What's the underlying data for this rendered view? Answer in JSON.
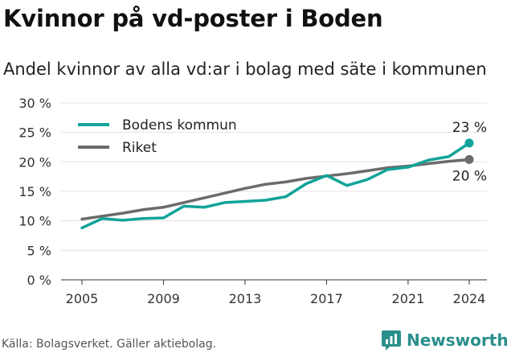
{
  "title": "Kvinnor på vd-poster i Boden",
  "subtitle": "Andel kvinnor av alla vd:ar i bolag med säte i kommunen",
  "source": "Källa: Bolagsverket. Gäller aktiebolag.",
  "brand": "Newsworthy",
  "colors": {
    "bodens": "#11a39a",
    "riket": "#6b6b6b",
    "brand": "#2a8f8b",
    "grid": "#e3e3e3"
  },
  "chart_data": {
    "type": "line",
    "x": [
      2005,
      2006,
      2007,
      2008,
      2009,
      2010,
      2011,
      2012,
      2013,
      2014,
      2015,
      2016,
      2017,
      2018,
      2019,
      2020,
      2021,
      2022,
      2023,
      2024
    ],
    "x_ticks": [
      "2005",
      "2009",
      "2013",
      "2017",
      "2021",
      "2024"
    ],
    "y_ticks": [
      "0 %",
      "5 %",
      "10 %",
      "15 %",
      "20 %",
      "25 %",
      "30 %"
    ],
    "ylim": [
      0,
      30
    ],
    "grid": true,
    "legend": "top-left",
    "series": [
      {
        "name": "Bodens kommun",
        "color": "#11a39a",
        "values": [
          8.8,
          10.4,
          10.1,
          10.4,
          10.5,
          12.5,
          12.3,
          13.1,
          13.3,
          13.5,
          14.1,
          16.3,
          17.7,
          16.0,
          17.0,
          18.7,
          19.1,
          20.3,
          20.9,
          23.2
        ],
        "end_label": "23 %"
      },
      {
        "name": "Riket",
        "color": "#6b6b6b",
        "values": [
          10.3,
          10.8,
          11.3,
          11.9,
          12.3,
          13.1,
          13.9,
          14.7,
          15.5,
          16.2,
          16.6,
          17.2,
          17.6,
          18.0,
          18.5,
          19.0,
          19.3,
          19.7,
          20.1,
          20.4
        ],
        "end_label": "20 %"
      }
    ]
  }
}
